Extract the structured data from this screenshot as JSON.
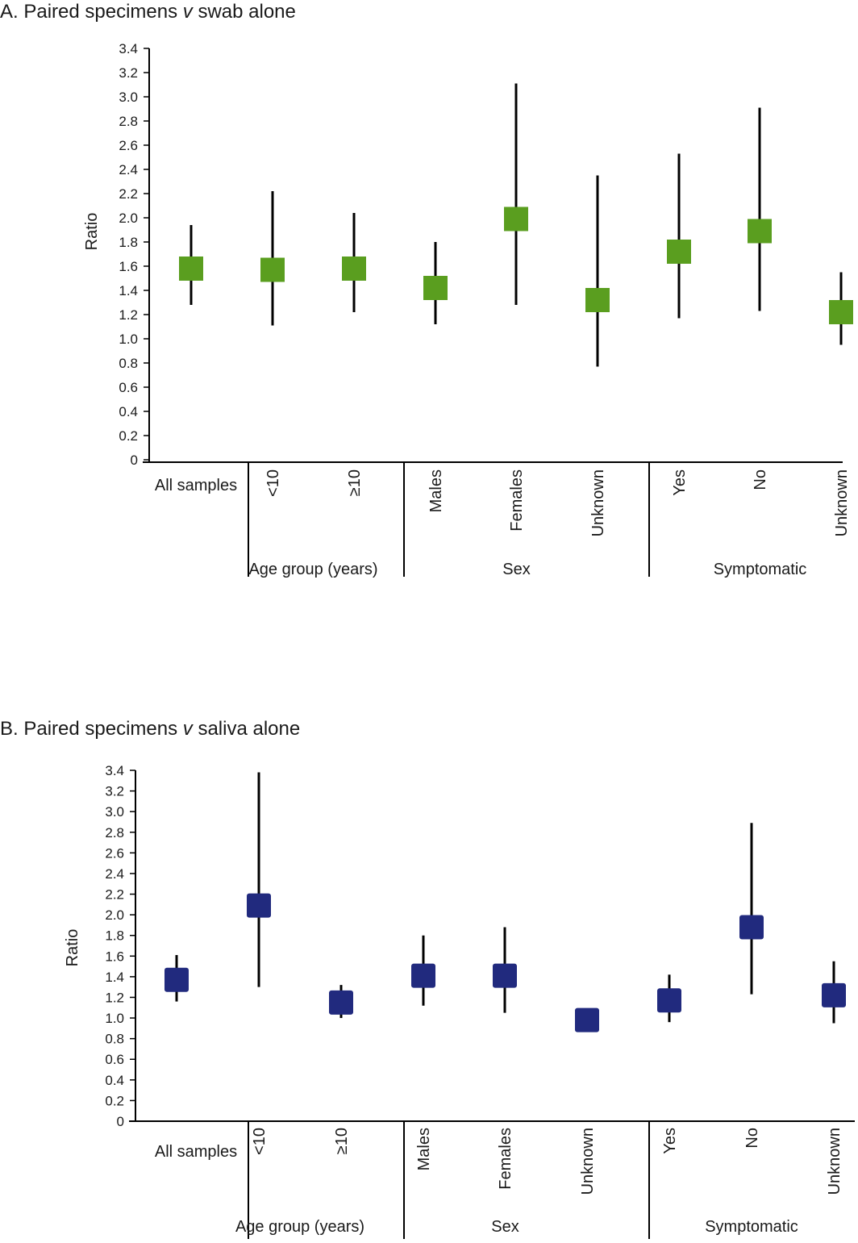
{
  "chart_data": [
    {
      "type": "forest",
      "title": "A. Paired specimens v swab alone",
      "title_prefix": "A. Paired specimens ",
      "title_italic": "v",
      "title_suffix": " swab alone",
      "ylabel": "Ratio",
      "ylim": [
        0,
        3.4
      ],
      "yticks": [
        "0",
        "0.2",
        "0.4",
        "0.6",
        "0.8",
        "1.0",
        "1.2",
        "1.4",
        "1.6",
        "1.8",
        "2.0",
        "2.2",
        "2.4",
        "2.6",
        "2.8",
        "3.0",
        "3.2",
        "3.4"
      ],
      "color": "#5a9e1f",
      "categories": [
        "All samples",
        "<10",
        "≥10",
        "Males",
        "Females",
        "Unknown",
        "Yes",
        "No",
        "Unknown"
      ],
      "groups": [
        {
          "label": "Age group (years)",
          "members": [
            1,
            2
          ]
        },
        {
          "label": "Sex",
          "members": [
            3,
            4,
            5
          ]
        },
        {
          "label": "Symptomatic",
          "members": [
            6,
            7,
            8
          ]
        }
      ],
      "estimate": [
        1.58,
        1.57,
        1.58,
        1.42,
        1.99,
        1.32,
        1.72,
        1.89,
        1.22
      ],
      "lower": [
        1.28,
        1.11,
        1.22,
        1.12,
        1.28,
        0.77,
        1.17,
        1.23,
        0.95
      ],
      "upper": [
        1.94,
        2.22,
        2.04,
        1.8,
        3.11,
        2.35,
        2.53,
        2.91,
        1.55
      ],
      "grid": false
    },
    {
      "type": "forest",
      "title": "B. Paired specimens v saliva alone",
      "title_prefix": "B. Paired specimens ",
      "title_italic": "v",
      "title_suffix": " saliva alone",
      "ylabel": "Ratio",
      "ylim": [
        0,
        3.4
      ],
      "yticks": [
        "0",
        "0.2",
        "0.4",
        "0.6",
        "0.8",
        "1.0",
        "1.2",
        "1.4",
        "1.6",
        "1.8",
        "2.0",
        "2.2",
        "2.4",
        "2.6",
        "2.8",
        "3.0",
        "3.2",
        "3.4"
      ],
      "color": "#212a7e",
      "categories": [
        "All samples",
        "<10",
        "≥10",
        "Males",
        "Females",
        "Unknown",
        "Yes",
        "No",
        "Unknown"
      ],
      "groups": [
        {
          "label": "Age group (years)",
          "members": [
            1,
            2
          ]
        },
        {
          "label": "Sex",
          "members": [
            3,
            4,
            5
          ]
        },
        {
          "label": "Symptomatic",
          "members": [
            6,
            7,
            8
          ]
        }
      ],
      "estimate": [
        1.37,
        2.09,
        1.15,
        1.41,
        1.41,
        0.98,
        1.17,
        1.88,
        1.22
      ],
      "lower": [
        1.16,
        1.3,
        1.0,
        1.12,
        1.05,
        0.98,
        0.96,
        1.23,
        0.95
      ],
      "upper": [
        1.61,
        3.38,
        1.32,
        1.8,
        1.88,
        0.98,
        1.42,
        2.89,
        1.55
      ],
      "grid": false
    }
  ]
}
